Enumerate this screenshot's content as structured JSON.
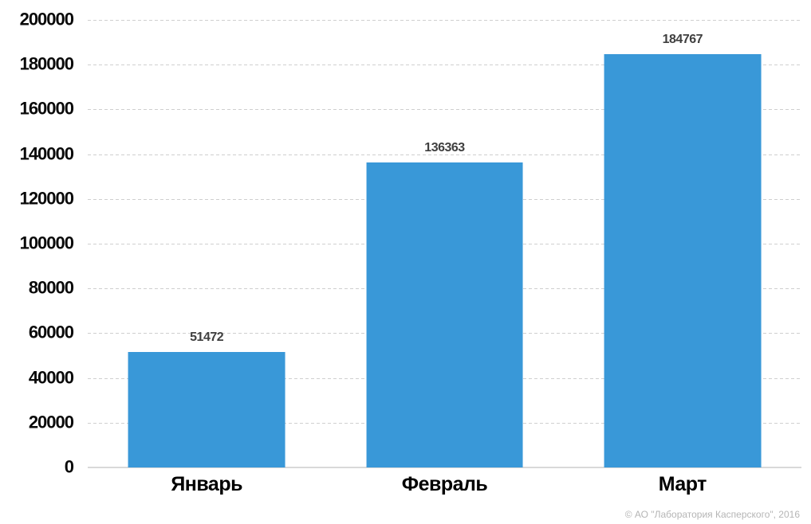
{
  "chart_data": {
    "type": "bar",
    "categories": [
      "Январь",
      "Февраль",
      "Март"
    ],
    "values": [
      51472,
      136363,
      184767
    ],
    "value_labels": [
      "51472",
      "136363",
      "184767"
    ],
    "title": "",
    "xlabel": "",
    "ylabel": "",
    "ylim": [
      0,
      200000
    ],
    "ytick_step": 20000,
    "ytick_labels": [
      "0",
      "20000",
      "40000",
      "60000",
      "80000",
      "100000",
      "120000",
      "140000",
      "160000",
      "180000",
      "200000"
    ],
    "grid": "horizontal-dashed",
    "legend": "none",
    "bar_color": "#3998d8"
  },
  "colors": {
    "bar": "#3998d8",
    "gridline": "#cfcfcf",
    "baseline": "#d9d9d9",
    "tick_label": "#0a0a0a",
    "value_label": "#3f3f3f",
    "footer_text": "#b5b5b5",
    "background": "#ffffff"
  },
  "footer": {
    "copyright": "© АО \"Лаборатория Касперского\", 2016"
  }
}
